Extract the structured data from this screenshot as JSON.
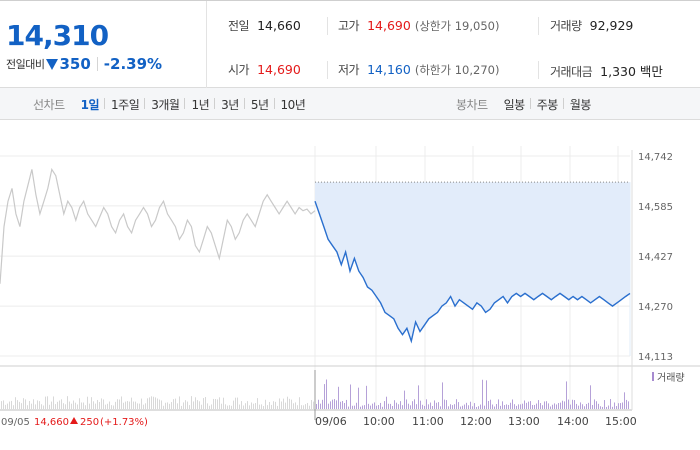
{
  "quote": {
    "price": "14,310",
    "change_label": "전일대비",
    "change_amount": "350",
    "change_percent": "-2.39%"
  },
  "stats": {
    "prev_close": {
      "label": "전일",
      "value": "14,660"
    },
    "high": {
      "label": "고가",
      "value": "14,690",
      "limit": "(상한가 19,050)"
    },
    "volume": {
      "label": "거래량",
      "value": "92,929"
    },
    "open": {
      "label": "시가",
      "value": "14,690"
    },
    "low": {
      "label": "저가",
      "value": "14,160",
      "limit": "(하한가 10,270)"
    },
    "trade_value": {
      "label": "거래대금",
      "value": "1,330 백만"
    }
  },
  "line_chart_tabs": {
    "lead": "선차트",
    "items": [
      "1일",
      "1주일",
      "3개월",
      "1년",
      "3년",
      "5년",
      "10년"
    ],
    "active": "1일"
  },
  "candle_chart_tabs": {
    "lead": "봉차트",
    "items": [
      "일봉",
      "주봉",
      "월봉"
    ]
  },
  "chart_data": {
    "type": "line",
    "y_ticks": [
      "14,742",
      "14,585",
      "14,427",
      "14,270",
      "14,113"
    ],
    "x_labels": [
      "09/06",
      "10:00",
      "11:00",
      "12:00",
      "13:00",
      "14:00",
      "15:00"
    ],
    "prev_day_date": "09/05",
    "prev_day_close": "14,660",
    "prev_day_change": "250",
    "prev_day_change_pct": "(+1.73%)",
    "volume_legend": "거래량",
    "ylim": [
      14113,
      14742
    ],
    "prev_close_level": 14660,
    "prev_day_series": [
      14340,
      14520,
      14600,
      14640,
      14560,
      14520,
      14600,
      14650,
      14700,
      14620,
      14560,
      14600,
      14640,
      14700,
      14680,
      14620,
      14560,
      14600,
      14580,
      14540,
      14580,
      14600,
      14560,
      14540,
      14520,
      14550,
      14580,
      14560,
      14520,
      14500,
      14540,
      14560,
      14520,
      14500,
      14540,
      14560,
      14580,
      14560,
      14520,
      14540,
      14580,
      14600,
      14560,
      14540,
      14520,
      14480,
      14500,
      14540,
      14520,
      14460,
      14440,
      14480,
      14520,
      14500,
      14460,
      14420,
      14480,
      14540,
      14520,
      14480,
      14500,
      14540,
      14560,
      14540,
      14520,
      14560,
      14600,
      14620,
      14600,
      14580,
      14560,
      14580,
      14600,
      14580,
      14560,
      14580,
      14570,
      14575,
      14560,
      14570
    ],
    "today_series": [
      14600,
      14560,
      14520,
      14480,
      14460,
      14440,
      14400,
      14440,
      14380,
      14420,
      14380,
      14360,
      14330,
      14320,
      14300,
      14280,
      14250,
      14240,
      14230,
      14200,
      14180,
      14200,
      14160,
      14220,
      14190,
      14210,
      14230,
      14240,
      14250,
      14270,
      14280,
      14300,
      14270,
      14290,
      14280,
      14270,
      14260,
      14280,
      14270,
      14250,
      14260,
      14280,
      14290,
      14300,
      14280,
      14300,
      14310,
      14300,
      14310,
      14300,
      14290,
      14300,
      14310,
      14300,
      14290,
      14300,
      14310,
      14300,
      14290,
      14300,
      14290,
      14300,
      14290,
      14280,
      14290,
      14300,
      14290,
      14280,
      14270,
      14280,
      14290,
      14300,
      14310
    ]
  }
}
